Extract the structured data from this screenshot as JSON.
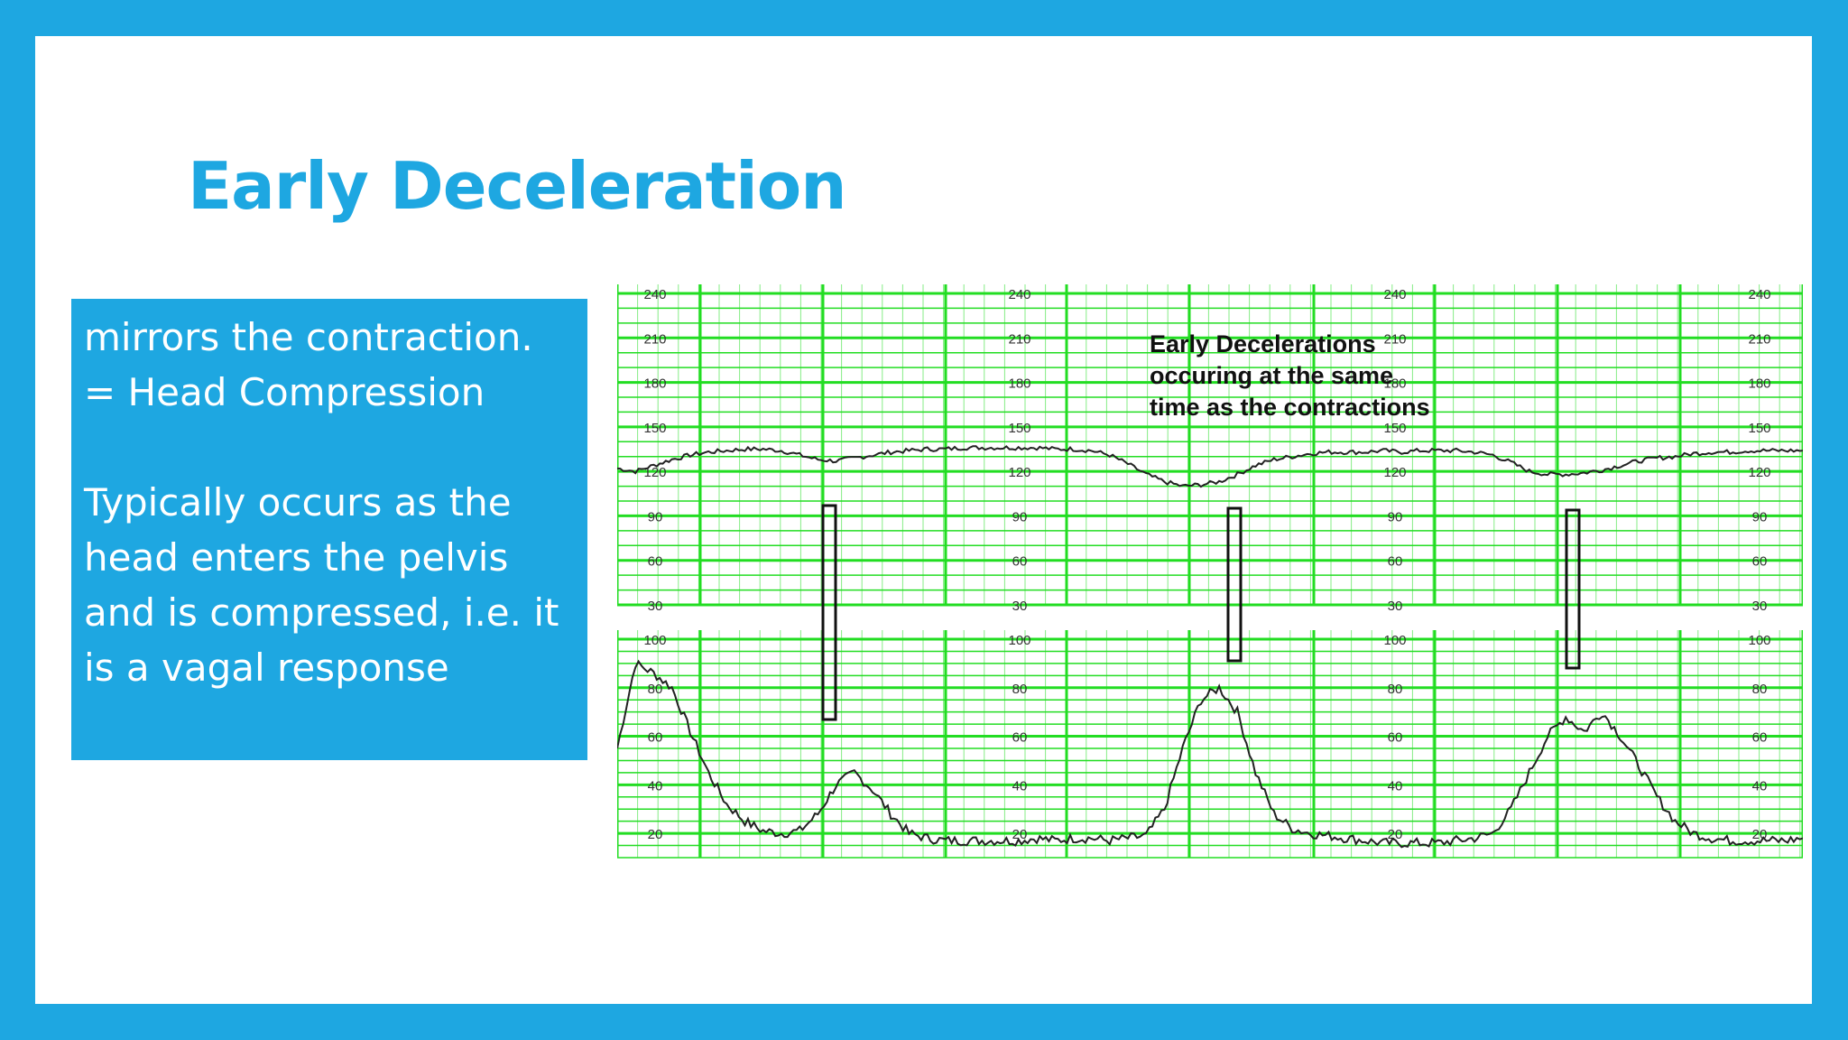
{
  "slide": {
    "title": "Early Deceleration",
    "text_lines_1": [
      "mirrors the contraction.",
      "= Head Compression"
    ],
    "text_lines_2": [
      "Typically occurs as the",
      "head enters the pelvis",
      "and is compressed, i.e. it",
      "is a vagal response"
    ]
  },
  "colors": {
    "frame": "#1ea7e1",
    "title": "#1ea7e1",
    "grid": "#22dd22",
    "trace": "#222222"
  },
  "chart_data": {
    "type": "line",
    "annotation": [
      "Early Decelerations",
      "occuring at the same",
      "time as the contractions"
    ],
    "fhr_panel": {
      "tick_labels": [
        "240",
        "210",
        "180",
        "150",
        "120",
        "90",
        "60",
        "30"
      ],
      "ylim": [
        30,
        240
      ],
      "x": [
        0,
        1,
        2,
        3,
        4,
        5,
        6,
        7,
        8,
        9,
        10,
        11,
        12,
        13,
        14,
        15,
        16,
        17,
        18,
        19,
        20,
        21,
        22,
        23,
        24,
        25,
        26,
        27,
        28,
        29,
        30,
        31,
        32,
        33,
        34,
        35,
        36,
        37,
        38,
        39,
        40,
        41,
        42,
        43,
        44,
        45,
        46,
        47,
        48,
        49,
        50,
        51,
        52,
        53,
        54,
        55,
        56,
        57,
        58,
        59,
        60,
        61,
        62,
        63,
        64,
        65
      ],
      "values": [
        122,
        120,
        124,
        128,
        131,
        133,
        134,
        135,
        135,
        134,
        131,
        128,
        127,
        129,
        131,
        133,
        134,
        135,
        135,
        136,
        136,
        136,
        136,
        136,
        135,
        135,
        134,
        131,
        125,
        118,
        113,
        110,
        111,
        113,
        118,
        124,
        128,
        130,
        132,
        133,
        133,
        133,
        134,
        133,
        134,
        134,
        134,
        133,
        131,
        126,
        120,
        118,
        118,
        119,
        121,
        124,
        127,
        129,
        130,
        132,
        133,
        133,
        134,
        134,
        134,
        134
      ]
    },
    "uc_panel": {
      "tick_labels": [
        "100",
        "80",
        "60",
        "40",
        "20"
      ],
      "ylim": [
        10,
        100
      ],
      "x": [
        0,
        1,
        2,
        3,
        4,
        5,
        6,
        7,
        8,
        9,
        10,
        11,
        12,
        13,
        14,
        15,
        16,
        17,
        18,
        19,
        20,
        21,
        22,
        23,
        24,
        25,
        26,
        27,
        28,
        29,
        30,
        31,
        32,
        33,
        34,
        35,
        36,
        37,
        38,
        39,
        40,
        41,
        42,
        43,
        44,
        45,
        46,
        47,
        48,
        49,
        50,
        51,
        52,
        53,
        54,
        55,
        56,
        57,
        58,
        59,
        60,
        61,
        62,
        63,
        64,
        65
      ],
      "values": [
        55,
        90,
        86,
        80,
        62,
        45,
        32,
        25,
        21,
        20,
        21,
        28,
        40,
        45,
        38,
        28,
        20,
        18,
        17,
        17,
        17,
        17,
        17,
        18,
        17,
        18,
        18,
        17,
        18,
        19,
        30,
        55,
        75,
        80,
        70,
        45,
        28,
        22,
        20,
        19,
        18,
        17,
        16,
        16,
        16,
        16,
        17,
        18,
        20,
        30,
        45,
        60,
        68,
        62,
        70,
        60,
        48,
        35,
        25,
        20,
        18,
        17,
        17,
        17,
        17,
        18
      ],
      "start_min": 0
    }
  }
}
